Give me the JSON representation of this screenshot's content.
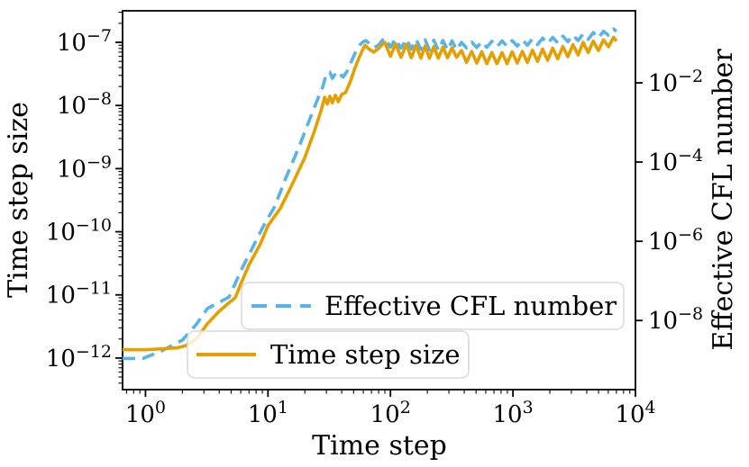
{
  "chart_data": {
    "type": "line",
    "title": "",
    "x_axis": {
      "label": "Time step",
      "scale": "log",
      "range": [
        0.65,
        10000
      ],
      "major_tick_exponents": [
        0,
        1,
        2,
        3,
        4
      ]
    },
    "y_axis_left": {
      "label": "Time step size",
      "scale": "log",
      "range": [
        3.16e-13,
        3.16e-07
      ],
      "major_tick_exponents": [
        -12,
        -11,
        -10,
        -9,
        -8,
        -7
      ]
    },
    "y_axis_right": {
      "label": "Effective CFL number",
      "scale": "log",
      "range": [
        1.8e-10,
        0.66
      ],
      "labeled_tick_exponents": [
        -8,
        -6,
        -4,
        -2
      ]
    },
    "legend": [
      {
        "label": "Effective CFL number",
        "color": "#56B4E9",
        "style": "dashed"
      },
      {
        "label": "Time step size",
        "color": "#E69F00",
        "style": "solid"
      }
    ],
    "series": [
      {
        "name": "Effective CFL number",
        "axis": "right",
        "color": "#56B4E9",
        "style": "dashed",
        "points": [
          [
            0.65,
            1.1e-09
          ],
          [
            0.95,
            1.1e-09
          ],
          [
            1.35,
            1.7e-09
          ],
          [
            2.0,
            3.2e-09
          ],
          [
            2.6,
            8e-09
          ],
          [
            3.2,
            2e-08
          ],
          [
            4.8,
            3.9e-08
          ],
          [
            6.2,
            2.2e-07
          ],
          [
            7.8,
            9e-07
          ],
          [
            9.5,
            3e-06
          ],
          [
            11.3,
            7.3e-06
          ],
          [
            14,
            4e-05
          ],
          [
            18,
            0.00025
          ],
          [
            24,
            0.0025
          ],
          [
            28,
            0.008
          ],
          [
            30,
            0.017
          ],
          [
            32,
            0.0185
          ],
          [
            33.5,
            0.013
          ],
          [
            35,
            0.016
          ],
          [
            37,
            0.0135
          ],
          [
            39,
            0.0165
          ],
          [
            41,
            0.014
          ],
          [
            44,
            0.019
          ],
          [
            48,
            0.035
          ],
          [
            52,
            0.06
          ],
          [
            56,
            0.09
          ],
          [
            60,
            0.11
          ],
          [
            63,
            0.117
          ],
          [
            68,
            0.095
          ],
          [
            73,
            0.077
          ],
          [
            80,
            0.09
          ],
          [
            86,
            0.12
          ],
          [
            90,
            0.137
          ],
          [
            100,
            0.08
          ],
          [
            110,
            0.13
          ],
          [
            122,
            0.075
          ],
          [
            135,
            0.128
          ],
          [
            148,
            0.072
          ],
          [
            162,
            0.125
          ],
          [
            177,
            0.07
          ],
          [
            192,
            0.122
          ],
          [
            208,
            0.068
          ],
          [
            226,
            0.12
          ],
          [
            246,
            0.067
          ],
          [
            268,
            0.118
          ],
          [
            292,
            0.067
          ],
          [
            318,
            0.115
          ],
          [
            346,
            0.068
          ],
          [
            380,
            0.105
          ],
          [
            418,
            0.076
          ],
          [
            460,
            0.107
          ],
          [
            506,
            0.078
          ],
          [
            556,
            0.11
          ],
          [
            612,
            0.079
          ],
          [
            673,
            0.112
          ],
          [
            740,
            0.081
          ],
          [
            814,
            0.115
          ],
          [
            896,
            0.083
          ],
          [
            985,
            0.117
          ],
          [
            1084,
            0.085
          ],
          [
            1192,
            0.123
          ],
          [
            1311,
            0.089
          ],
          [
            1443,
            0.129
          ],
          [
            1587,
            0.093
          ],
          [
            1745,
            0.135
          ],
          [
            1920,
            0.098
          ],
          [
            2112,
            0.141
          ],
          [
            2323,
            0.102
          ],
          [
            2556,
            0.151
          ],
          [
            2811,
            0.11
          ],
          [
            3092,
            0.162
          ],
          [
            3402,
            0.117
          ],
          [
            3742,
            0.174
          ],
          [
            4116,
            0.126
          ],
          [
            4527,
            0.186
          ],
          [
            4980,
            0.135
          ],
          [
            5478,
            0.2
          ],
          [
            6026,
            0.16
          ],
          [
            6628,
            0.23
          ],
          [
            7000,
            0.2
          ]
        ]
      },
      {
        "name": "Time step size",
        "axis": "left",
        "color": "#E69F00",
        "style": "solid",
        "points": [
          [
            0.65,
            1.35e-12
          ],
          [
            1.0,
            1.35e-12
          ],
          [
            1.4,
            1.4e-12
          ],
          [
            1.8,
            1.45e-12
          ],
          [
            2.1,
            1.55e-12
          ],
          [
            2.6,
            2e-12
          ],
          [
            3.2,
            3.5e-12
          ],
          [
            4.0,
            5.5e-12
          ],
          [
            4.8,
            7.5e-12
          ],
          [
            5.4,
            9e-12
          ],
          [
            6.0,
            1.5e-11
          ],
          [
            7.0,
            3e-11
          ],
          [
            8.7,
            6.5e-11
          ],
          [
            10,
            1.25e-10
          ],
          [
            12.7,
            2.4e-10
          ],
          [
            16,
            6e-10
          ],
          [
            20,
            1.5e-09
          ],
          [
            24,
            4e-09
          ],
          [
            27,
            8e-09
          ],
          [
            29,
            1.35e-08
          ],
          [
            30.5,
            1.05e-08
          ],
          [
            32,
            1.4e-08
          ],
          [
            33.5,
            1.1e-08
          ],
          [
            35.5,
            1.45e-08
          ],
          [
            37.5,
            1.15e-08
          ],
          [
            40,
            1.5e-08
          ],
          [
            43,
            1.6e-08
          ],
          [
            47,
            2.4e-08
          ],
          [
            51,
            3.8e-08
          ],
          [
            55,
            5.5e-08
          ],
          [
            59,
            7.5e-08
          ],
          [
            62,
            9e-08
          ],
          [
            67,
            7.8e-08
          ],
          [
            73,
            7e-08
          ],
          [
            80,
            8e-08
          ],
          [
            86,
            9.3e-08
          ],
          [
            90,
            1e-07
          ],
          [
            100,
            6e-08
          ],
          [
            110,
            9.5e-08
          ],
          [
            122,
            5.8e-08
          ],
          [
            135,
            9.3e-08
          ],
          [
            148,
            5.7e-08
          ],
          [
            162,
            9e-08
          ],
          [
            177,
            5.6e-08
          ],
          [
            192,
            8.8e-08
          ],
          [
            208,
            5.6e-08
          ],
          [
            226,
            8.6e-08
          ],
          [
            246,
            5.6e-08
          ],
          [
            268,
            8.4e-08
          ],
          [
            292,
            5.7e-08
          ],
          [
            318,
            8.2e-08
          ],
          [
            346,
            5.8e-08
          ],
          [
            380,
            7.4e-08
          ],
          [
            418,
            4.8e-08
          ],
          [
            460,
            7.2e-08
          ],
          [
            506,
            4.7e-08
          ],
          [
            556,
            7.1e-08
          ],
          [
            612,
            4.6e-08
          ],
          [
            673,
            6.9e-08
          ],
          [
            740,
            4.6e-08
          ],
          [
            814,
            6.9e-08
          ],
          [
            896,
            4.6e-08
          ],
          [
            985,
            7.1e-08
          ],
          [
            1084,
            4.7e-08
          ],
          [
            1192,
            7.2e-08
          ],
          [
            1311,
            4.8e-08
          ],
          [
            1443,
            7.5e-08
          ],
          [
            1587,
            5e-08
          ],
          [
            1745,
            7.8e-08
          ],
          [
            1920,
            5.2e-08
          ],
          [
            2112,
            8.1e-08
          ],
          [
            2323,
            5.5e-08
          ],
          [
            2556,
            8.6e-08
          ],
          [
            2811,
            5.9e-08
          ],
          [
            3092,
            9.2e-08
          ],
          [
            3402,
            6.3e-08
          ],
          [
            3742,
            1e-07
          ],
          [
            4116,
            6.9e-08
          ],
          [
            4527,
            1.05e-07
          ],
          [
            4980,
            7.4e-08
          ],
          [
            5478,
            1.1e-07
          ],
          [
            6026,
            8.5e-08
          ],
          [
            6628,
            1.2e-07
          ],
          [
            7000,
            1.05e-07
          ]
        ]
      }
    ],
    "layout_hints": {
      "grid": "off",
      "legend_position": "lower center, two stacked boxes",
      "background": "#ffffff",
      "spine_color": "#000000"
    }
  }
}
